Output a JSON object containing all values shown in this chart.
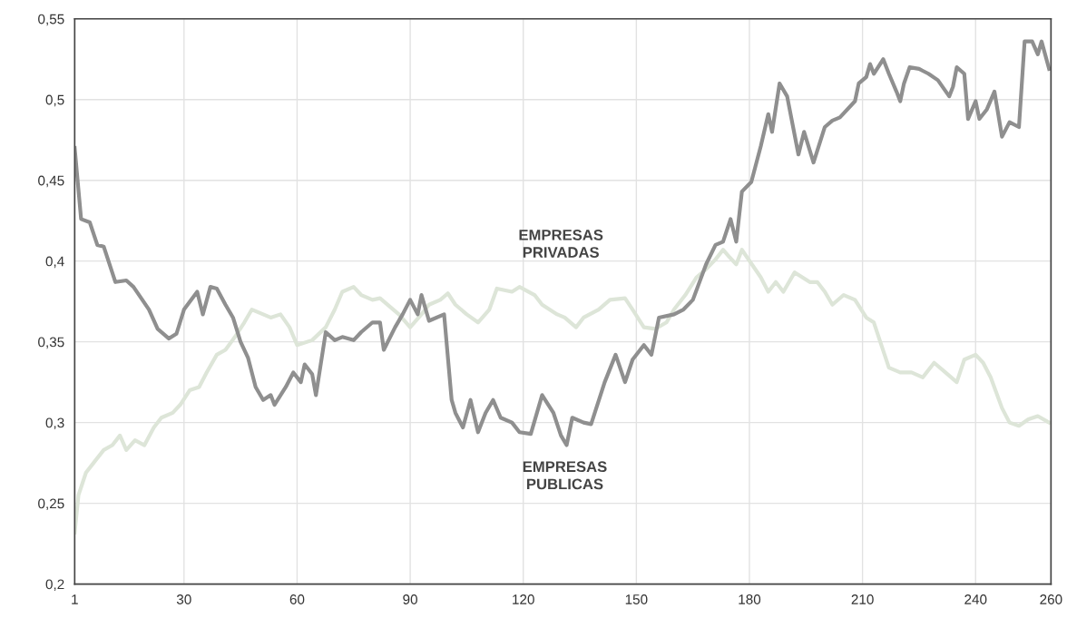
{
  "chart_data": {
    "type": "line",
    "xlim": [
      1,
      260
    ],
    "ylim": [
      0.2,
      0.55
    ],
    "xticks": [
      1,
      30,
      60,
      90,
      120,
      150,
      180,
      210,
      240,
      260
    ],
    "yticks": [
      {
        "value": 0.2,
        "label": "0,2"
      },
      {
        "value": 0.25,
        "label": "0,25"
      },
      {
        "value": 0.3,
        "label": "0,3"
      },
      {
        "value": 0.35,
        "label": "0,35"
      },
      {
        "value": 0.4,
        "label": "0,4"
      },
      {
        "value": 0.45,
        "label": "0,45"
      },
      {
        "value": 0.5,
        "label": "0,5"
      },
      {
        "value": 0.55,
        "label": "0,55"
      }
    ],
    "grid": true,
    "line_style": "solid",
    "series": [
      {
        "name": "EMPRESAS\nPRIVADAS",
        "color": "#dde5d8",
        "x": [
          1,
          2,
          4,
          6,
          8.7,
          11,
          13,
          14.7,
          17,
          19.5,
          22,
          24,
          27,
          29,
          31.5,
          34,
          36,
          38.7,
          41,
          43.5,
          46,
          48,
          51,
          53,
          55.6,
          58,
          60,
          64,
          67.6,
          70,
          72,
          75,
          77,
          80,
          82,
          87,
          90,
          93,
          95,
          98,
          100,
          102,
          105,
          108,
          111,
          113,
          117,
          119,
          123,
          125,
          129,
          131,
          134,
          136,
          140,
          143,
          147,
          149,
          152,
          155,
          158,
          160,
          163,
          166,
          168.5,
          171,
          173,
          174.5,
          176.5,
          178,
          183,
          185,
          187,
          189,
          192,
          196,
          198,
          200,
          202,
          205,
          208,
          211,
          213,
          217,
          220,
          223,
          226,
          229,
          232,
          235,
          237,
          240,
          242,
          244,
          247,
          249,
          251.5,
          254,
          256.5,
          259.5
        ],
        "values": [
          0.232,
          0.255,
          0.269,
          0.275,
          0.283,
          0.286,
          0.292,
          0.283,
          0.289,
          0.286,
          0.297,
          0.303,
          0.306,
          0.311,
          0.32,
          0.322,
          0.331,
          0.342,
          0.345,
          0.353,
          0.362,
          0.37,
          0.367,
          0.365,
          0.367,
          0.359,
          0.348,
          0.351,
          0.359,
          0.37,
          0.381,
          0.384,
          0.379,
          0.376,
          0.377,
          0.367,
          0.359,
          0.367,
          0.373,
          0.376,
          0.38,
          0.373,
          0.367,
          0.362,
          0.37,
          0.383,
          0.381,
          0.384,
          0.379,
          0.373,
          0.367,
          0.365,
          0.359,
          0.365,
          0.37,
          0.376,
          0.377,
          0.37,
          0.359,
          0.358,
          0.362,
          0.37,
          0.379,
          0.39,
          0.395,
          0.401,
          0.407,
          0.403,
          0.398,
          0.407,
          0.39,
          0.381,
          0.387,
          0.381,
          0.393,
          0.387,
          0.387,
          0.381,
          0.373,
          0.379,
          0.376,
          0.365,
          0.362,
          0.334,
          0.331,
          0.331,
          0.328,
          0.337,
          0.331,
          0.325,
          0.339,
          0.342,
          0.337,
          0.328,
          0.309,
          0.3,
          0.298,
          0.302,
          0.304,
          0.3
        ]
      },
      {
        "name": "EMPRESAS\nPUBLICAS",
        "color": "#8f8f8f",
        "x": [
          1,
          2.7,
          5,
          7,
          8.7,
          11.8,
          14.7,
          16.6,
          20.7,
          23,
          26,
          28,
          30,
          33.5,
          35,
          37,
          38.7,
          41,
          43,
          45,
          47,
          49,
          51,
          53,
          54,
          57,
          59,
          61,
          62,
          64,
          65,
          67.6,
          70,
          72,
          75,
          77,
          80,
          82,
          83,
          86,
          88,
          90,
          92,
          93,
          95,
          99,
          101,
          102,
          104,
          106,
          108,
          110,
          112,
          114,
          117,
          119,
          122,
          125,
          128,
          130,
          131.5,
          133,
          136,
          138,
          141.6,
          144.5,
          147,
          149,
          152,
          154,
          156,
          160,
          162.5,
          165,
          168.5,
          171,
          173,
          175,
          176.5,
          178,
          180.5,
          183,
          185,
          186,
          188,
          190,
          193,
          194.5,
          197,
          200,
          202,
          204,
          208,
          209,
          211,
          212,
          213,
          215.5,
          217,
          219,
          220,
          221,
          222.5,
          225,
          227.5,
          230,
          233,
          234,
          235,
          237,
          238,
          240,
          241,
          243,
          245,
          247,
          249,
          251.5,
          253,
          255,
          256.5,
          257.5,
          259.5
        ],
        "values": [
          0.47,
          0.426,
          0.424,
          0.41,
          0.409,
          0.387,
          0.388,
          0.384,
          0.37,
          0.358,
          0.352,
          0.355,
          0.37,
          0.381,
          0.367,
          0.384,
          0.383,
          0.373,
          0.365,
          0.35,
          0.34,
          0.322,
          0.314,
          0.317,
          0.311,
          0.322,
          0.331,
          0.325,
          0.336,
          0.33,
          0.317,
          0.356,
          0.351,
          0.353,
          0.351,
          0.356,
          0.362,
          0.362,
          0.345,
          0.359,
          0.367,
          0.376,
          0.367,
          0.379,
          0.363,
          0.367,
          0.314,
          0.306,
          0.297,
          0.314,
          0.294,
          0.306,
          0.314,
          0.303,
          0.3,
          0.294,
          0.293,
          0.317,
          0.306,
          0.292,
          0.286,
          0.303,
          0.3,
          0.299,
          0.325,
          0.342,
          0.325,
          0.339,
          0.348,
          0.342,
          0.365,
          0.367,
          0.37,
          0.376,
          0.398,
          0.41,
          0.412,
          0.426,
          0.412,
          0.443,
          0.449,
          0.471,
          0.491,
          0.48,
          0.51,
          0.502,
          0.466,
          0.48,
          0.461,
          0.483,
          0.487,
          0.489,
          0.499,
          0.51,
          0.514,
          0.522,
          0.516,
          0.525,
          0.516,
          0.505,
          0.499,
          0.51,
          0.52,
          0.519,
          0.516,
          0.512,
          0.502,
          0.508,
          0.52,
          0.516,
          0.488,
          0.499,
          0.488,
          0.494,
          0.505,
          0.477,
          0.486,
          0.483,
          0.536,
          0.536,
          0.528,
          0.536,
          0.519
        ]
      }
    ]
  }
}
